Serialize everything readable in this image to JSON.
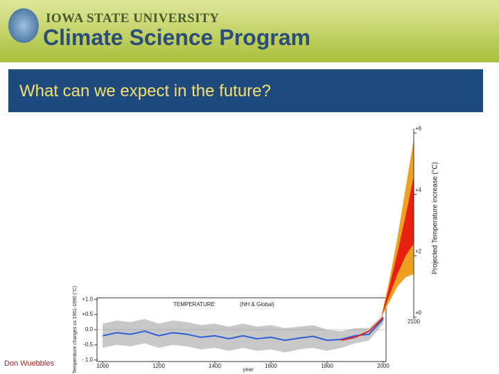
{
  "header": {
    "university": "Iowa State University",
    "program": "Climate Science Program"
  },
  "slide_title": "What can we expect in the future?",
  "footer": "Don Wuebbles",
  "chart_data": [
    {
      "type": "line",
      "title": "TEMPERATURE",
      "legend_title": "(NH & Global)",
      "xlabel": "year",
      "ylabel": "Temperature changes vs 1961-1990 (°C)",
      "x": [
        1000,
        1050,
        1100,
        1150,
        1200,
        1250,
        1300,
        1350,
        1400,
        1450,
        1500,
        1550,
        1600,
        1650,
        1700,
        1750,
        1800,
        1850,
        1900,
        1950,
        2000
      ],
      "band": {
        "color": "#c8c8c8",
        "low": [
          -0.6,
          -0.5,
          -0.55,
          -0.45,
          -0.6,
          -0.5,
          -0.55,
          -0.65,
          -0.6,
          -0.7,
          -0.6,
          -0.7,
          -0.65,
          -0.75,
          -0.65,
          -0.6,
          -0.7,
          -0.6,
          -0.45,
          -0.35,
          0.2
        ],
        "high": [
          0.2,
          0.3,
          0.25,
          0.35,
          0.2,
          0.3,
          0.25,
          0.15,
          0.2,
          0.1,
          0.2,
          0.1,
          0.15,
          0.05,
          0.1,
          0.15,
          0.0,
          -0.05,
          0.05,
          0.05,
          0.5
        ]
      },
      "series": [
        {
          "name": "NH",
          "color": "#2a5fd8",
          "values": [
            -0.2,
            -0.1,
            -0.15,
            -0.05,
            -0.2,
            -0.1,
            -0.15,
            -0.25,
            -0.2,
            -0.3,
            -0.2,
            -0.3,
            -0.25,
            -0.35,
            -0.28,
            -0.22,
            -0.35,
            -0.32,
            -0.2,
            -0.15,
            0.35
          ]
        },
        {
          "name": "Global",
          "color": "#e02020",
          "values": [
            null,
            null,
            null,
            null,
            null,
            null,
            null,
            null,
            null,
            null,
            null,
            null,
            null,
            null,
            null,
            null,
            null,
            -0.35,
            -0.25,
            -0.05,
            0.4
          ]
        }
      ],
      "xlim": [
        980,
        2010
      ],
      "ylim": [
        -1.05,
        1.05
      ],
      "xticks": [
        1000,
        1200,
        1400,
        1600,
        1800,
        2000
      ],
      "yticks": [
        {
          "value": 1,
          "label": "+1.0"
        },
        {
          "value": 0.5,
          "label": "+0.5"
        },
        {
          "value": 0,
          "label": "0.0"
        },
        {
          "value": -0.5,
          "label": "-0.5"
        },
        {
          "value": -1,
          "label": "- 1.0"
        }
      ]
    },
    {
      "type": "area",
      "ylabel": "Projected Temperature increase (°C)",
      "x": [
        2000,
        2025,
        2050,
        2075,
        2100
      ],
      "bands": [
        {
          "color": "#f0a020",
          "low": [
            0,
            0.5,
            1.0,
            1.3,
            1.4
          ],
          "high": [
            0,
            1.2,
            2.6,
            4.2,
            5.8
          ]
        },
        {
          "color": "#e82010",
          "low": [
            0,
            0.7,
            1.4,
            2.0,
            2.4
          ],
          "high": [
            0,
            1.0,
            2.1,
            3.3,
            4.6
          ]
        }
      ],
      "xlim": [
        2000,
        2100
      ],
      "ylim": [
        0,
        6
      ],
      "xticks": [
        2100
      ],
      "yticks": [
        {
          "value": 0,
          "label": "+0"
        },
        {
          "value": 2,
          "label": "+2"
        },
        {
          "value": 4,
          "label": "+4"
        },
        {
          "value": 6,
          "label": "+6"
        }
      ]
    }
  ]
}
